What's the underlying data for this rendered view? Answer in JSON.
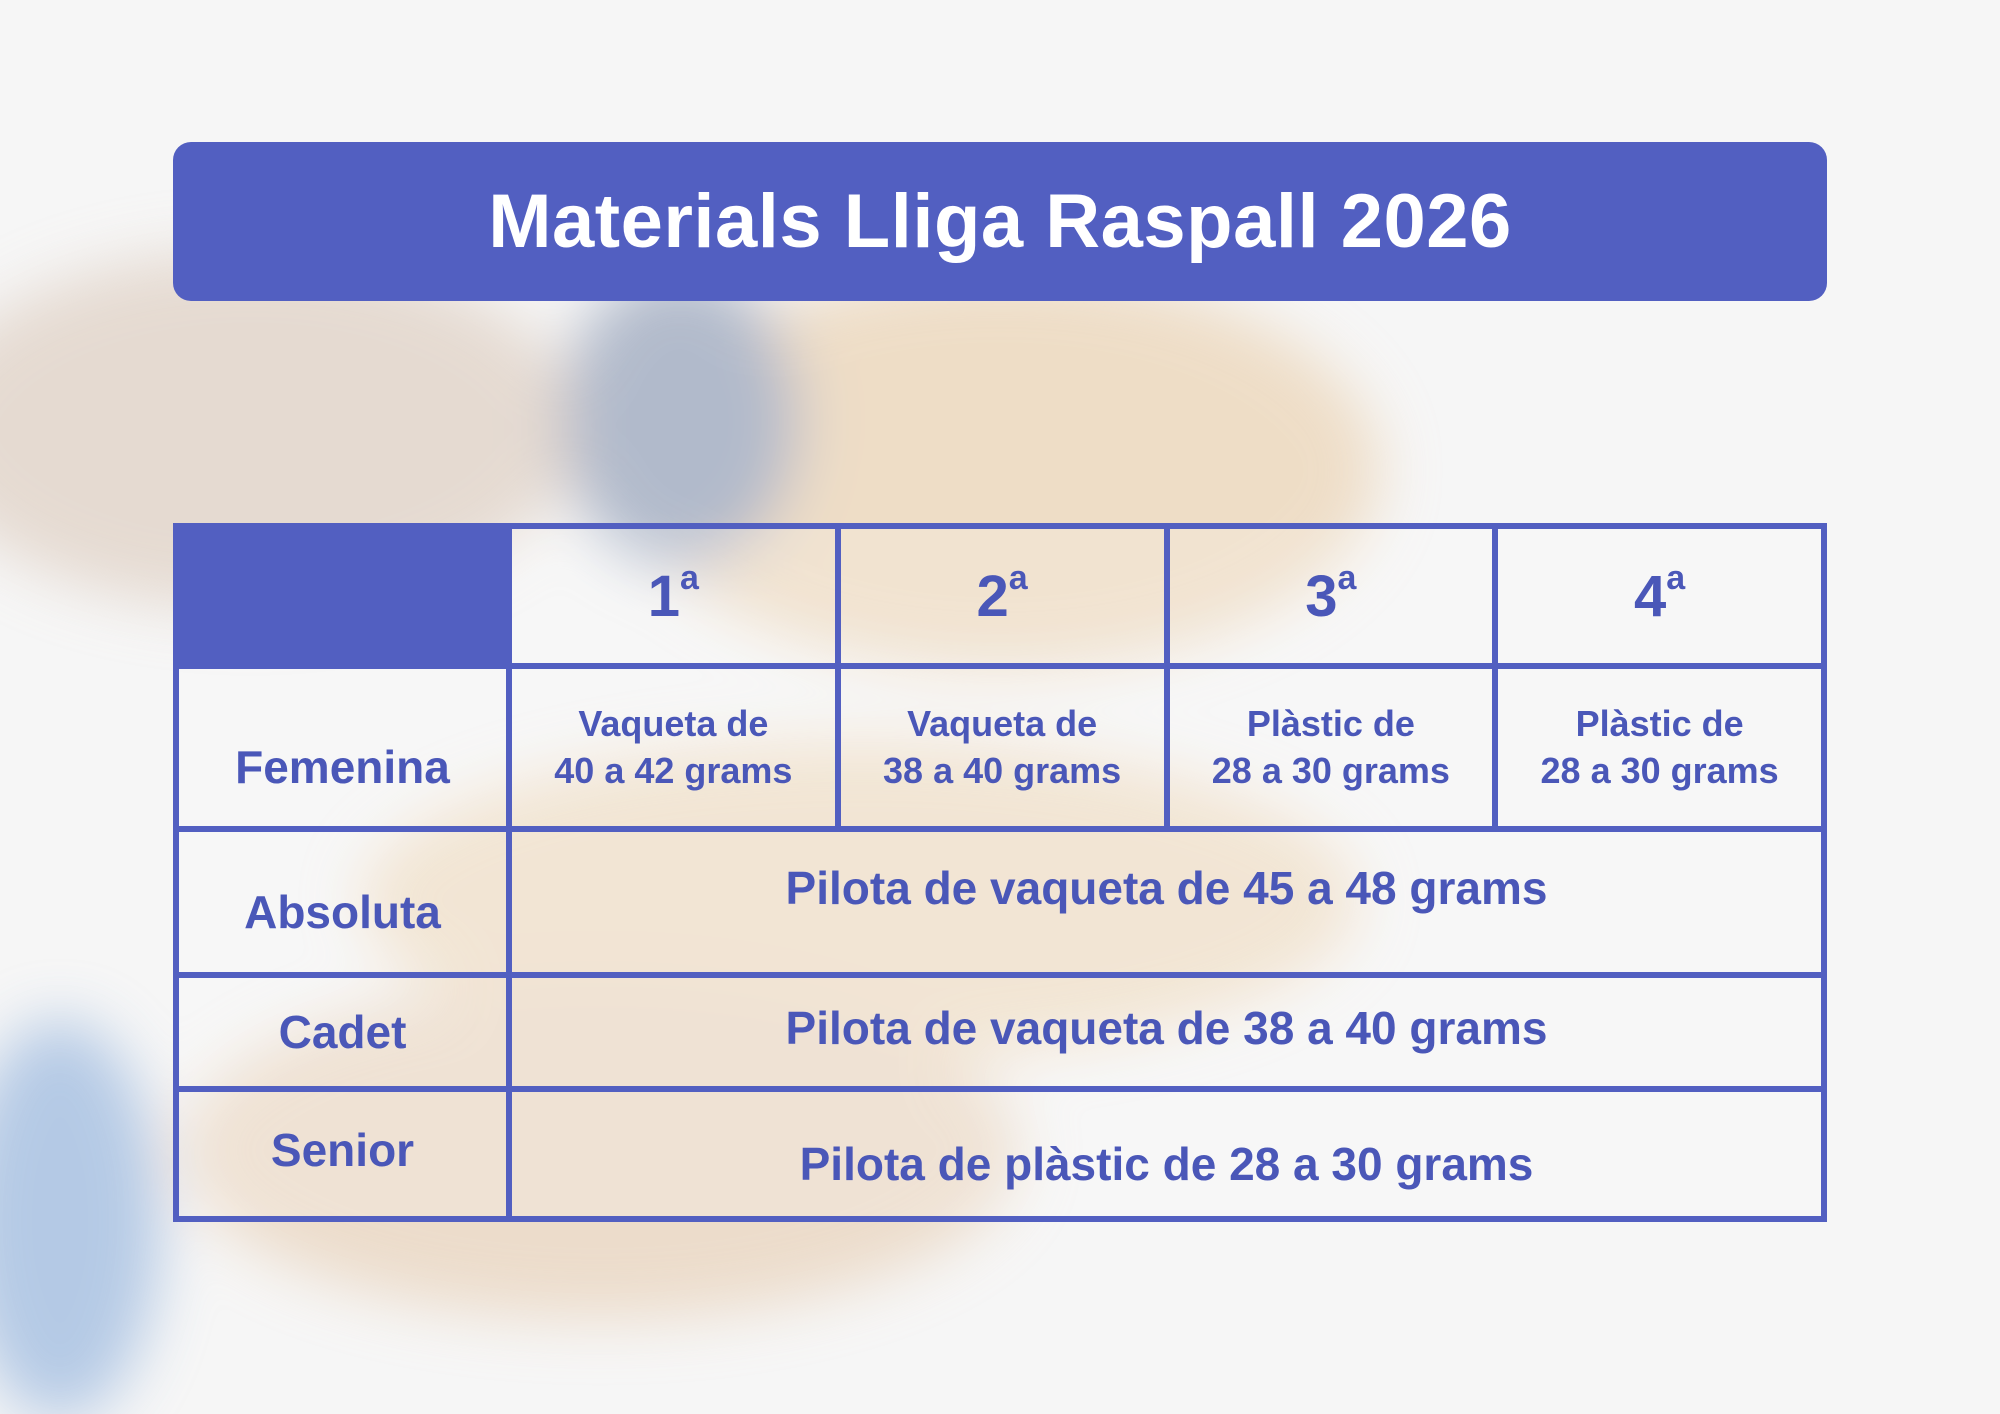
{
  "title": "Materials Lliga Raspall 2026",
  "accent_color": "#525fc1",
  "columns": [
    {
      "num": "1",
      "sup": "a"
    },
    {
      "num": "2",
      "sup": "a"
    },
    {
      "num": "3",
      "sup": "a"
    },
    {
      "num": "4",
      "sup": "a"
    }
  ],
  "rows": [
    {
      "label": "Femenina",
      "cells": [
        {
          "line1": "Vaqueta de",
          "line2": "40 a 42 grams"
        },
        {
          "line1": "Vaqueta de",
          "line2": "38 a 40 grams"
        },
        {
          "line1": "Plàstic de",
          "line2": "28 a 30 grams"
        },
        {
          "line1": "Plàstic de",
          "line2": "28 a 30 grams"
        }
      ]
    },
    {
      "label": "Absoluta",
      "span": "Pilota de vaqueta de 45 a 48 grams"
    },
    {
      "label": "Cadet",
      "span": "Pilota de vaqueta de 38 a 40 grams"
    },
    {
      "label": "Senior",
      "span": "Pilota de plàstic de 28 a 30 grams"
    }
  ]
}
